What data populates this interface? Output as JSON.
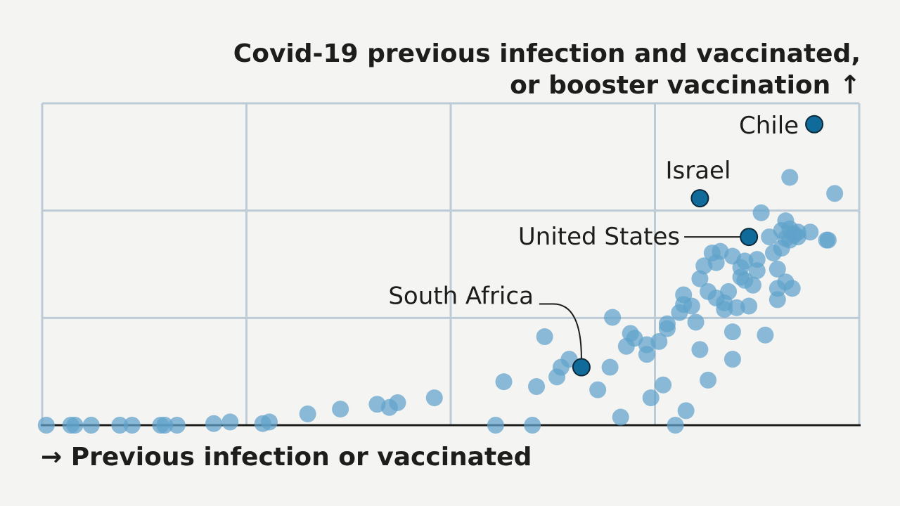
{
  "chart_data": {
    "type": "scatter",
    "ylabel_line1": "Covid-19 previous infection and vaccinated,",
    "ylabel_line2": "or booster vaccination",
    "ylabel_arrow": "↑",
    "xlabel_arrow": "→",
    "xlabel": "Previous infection or vaccinated",
    "xlim": [
      0,
      100
    ],
    "ylim": [
      0,
      100
    ],
    "grid": true,
    "colors": {
      "point": "#5fa2cb",
      "highlight": "#106a9a",
      "grid": "#bccbd6",
      "axis": "#1d1d1b",
      "text": "#1d1d1b"
    },
    "highlighted": [
      {
        "name": "Chile",
        "x": 94.5,
        "y": 93.5
      },
      {
        "name": "Israel",
        "x": 80.5,
        "y": 70.5
      },
      {
        "name": "United States",
        "x": 86.5,
        "y": 58.5
      },
      {
        "name": "South Africa",
        "x": 66.0,
        "y": 18.0
      }
    ],
    "points": [
      [
        0.5,
        0
      ],
      [
        3.5,
        0
      ],
      [
        4.0,
        0
      ],
      [
        6.0,
        0
      ],
      [
        9.5,
        0
      ],
      [
        11.0,
        0
      ],
      [
        14.5,
        0
      ],
      [
        15.0,
        0
      ],
      [
        16.5,
        0
      ],
      [
        21.0,
        0.5
      ],
      [
        23.0,
        1.0
      ],
      [
        27.0,
        0.5
      ],
      [
        27.8,
        1.0
      ],
      [
        32.5,
        3.5
      ],
      [
        36.5,
        5.0
      ],
      [
        41.0,
        6.5
      ],
      [
        42.5,
        5.5
      ],
      [
        43.5,
        7.0
      ],
      [
        48.0,
        8.5
      ],
      [
        55.5,
        0
      ],
      [
        56.5,
        13.5
      ],
      [
        60.0,
        0
      ],
      [
        60.5,
        12.0
      ],
      [
        61.5,
        27.5
      ],
      [
        63.0,
        15.0
      ],
      [
        63.5,
        18.0
      ],
      [
        64.5,
        20.5
      ],
      [
        68.0,
        11.0
      ],
      [
        69.5,
        18.0
      ],
      [
        69.8,
        33.5
      ],
      [
        70.8,
        2.5
      ],
      [
        71.5,
        24.5
      ],
      [
        72.0,
        28.5
      ],
      [
        72.5,
        27.0
      ],
      [
        74.0,
        25.0
      ],
      [
        74.0,
        22.0
      ],
      [
        74.5,
        8.5
      ],
      [
        75.5,
        26.0
      ],
      [
        76.0,
        12.5
      ],
      [
        76.5,
        30.0
      ],
      [
        76.5,
        31.5
      ],
      [
        77.5,
        0
      ],
      [
        78.0,
        35.0
      ],
      [
        78.5,
        37.5
      ],
      [
        78.5,
        40.5
      ],
      [
        78.8,
        4.5
      ],
      [
        79.5,
        37.0
      ],
      [
        80.0,
        32.0
      ],
      [
        80.5,
        45.5
      ],
      [
        80.5,
        23.5
      ],
      [
        81.0,
        49.5
      ],
      [
        81.5,
        41.5
      ],
      [
        81.5,
        14.0
      ],
      [
        82.0,
        53.5
      ],
      [
        82.5,
        39.5
      ],
      [
        82.5,
        50.5
      ],
      [
        83.0,
        54.0
      ],
      [
        83.5,
        38.0
      ],
      [
        83.5,
        36.0
      ],
      [
        84.0,
        41.5
      ],
      [
        84.5,
        52.5
      ],
      [
        84.5,
        20.5
      ],
      [
        84.5,
        29.0
      ],
      [
        85.0,
        36.5
      ],
      [
        85.5,
        46.0
      ],
      [
        85.5,
        49.0
      ],
      [
        86.0,
        51.0
      ],
      [
        86.0,
        45.0
      ],
      [
        86.5,
        37.0
      ],
      [
        87.0,
        43.5
      ],
      [
        87.5,
        51.5
      ],
      [
        87.5,
        48.0
      ],
      [
        88.0,
        66.0
      ],
      [
        88.5,
        28.0
      ],
      [
        89.0,
        58.5
      ],
      [
        89.5,
        53.5
      ],
      [
        90.0,
        48.5
      ],
      [
        90.0,
        42.5
      ],
      [
        90.0,
        39.0
      ],
      [
        90.5,
        55.0
      ],
      [
        90.5,
        60.5
      ],
      [
        91.0,
        58.0
      ],
      [
        91.0,
        63.5
      ],
      [
        91.0,
        44.5
      ],
      [
        91.5,
        77.0
      ],
      [
        91.5,
        61.0
      ],
      [
        91.5,
        57.5
      ],
      [
        91.8,
        42.5
      ],
      [
        92.0,
        59.0
      ],
      [
        92.0,
        59.5
      ],
      [
        92.5,
        60.0
      ],
      [
        92.5,
        58.5
      ],
      [
        94.0,
        60.0
      ],
      [
        96.0,
        57.5
      ],
      [
        96.2,
        57.5
      ],
      [
        97.0,
        72.0
      ]
    ]
  }
}
